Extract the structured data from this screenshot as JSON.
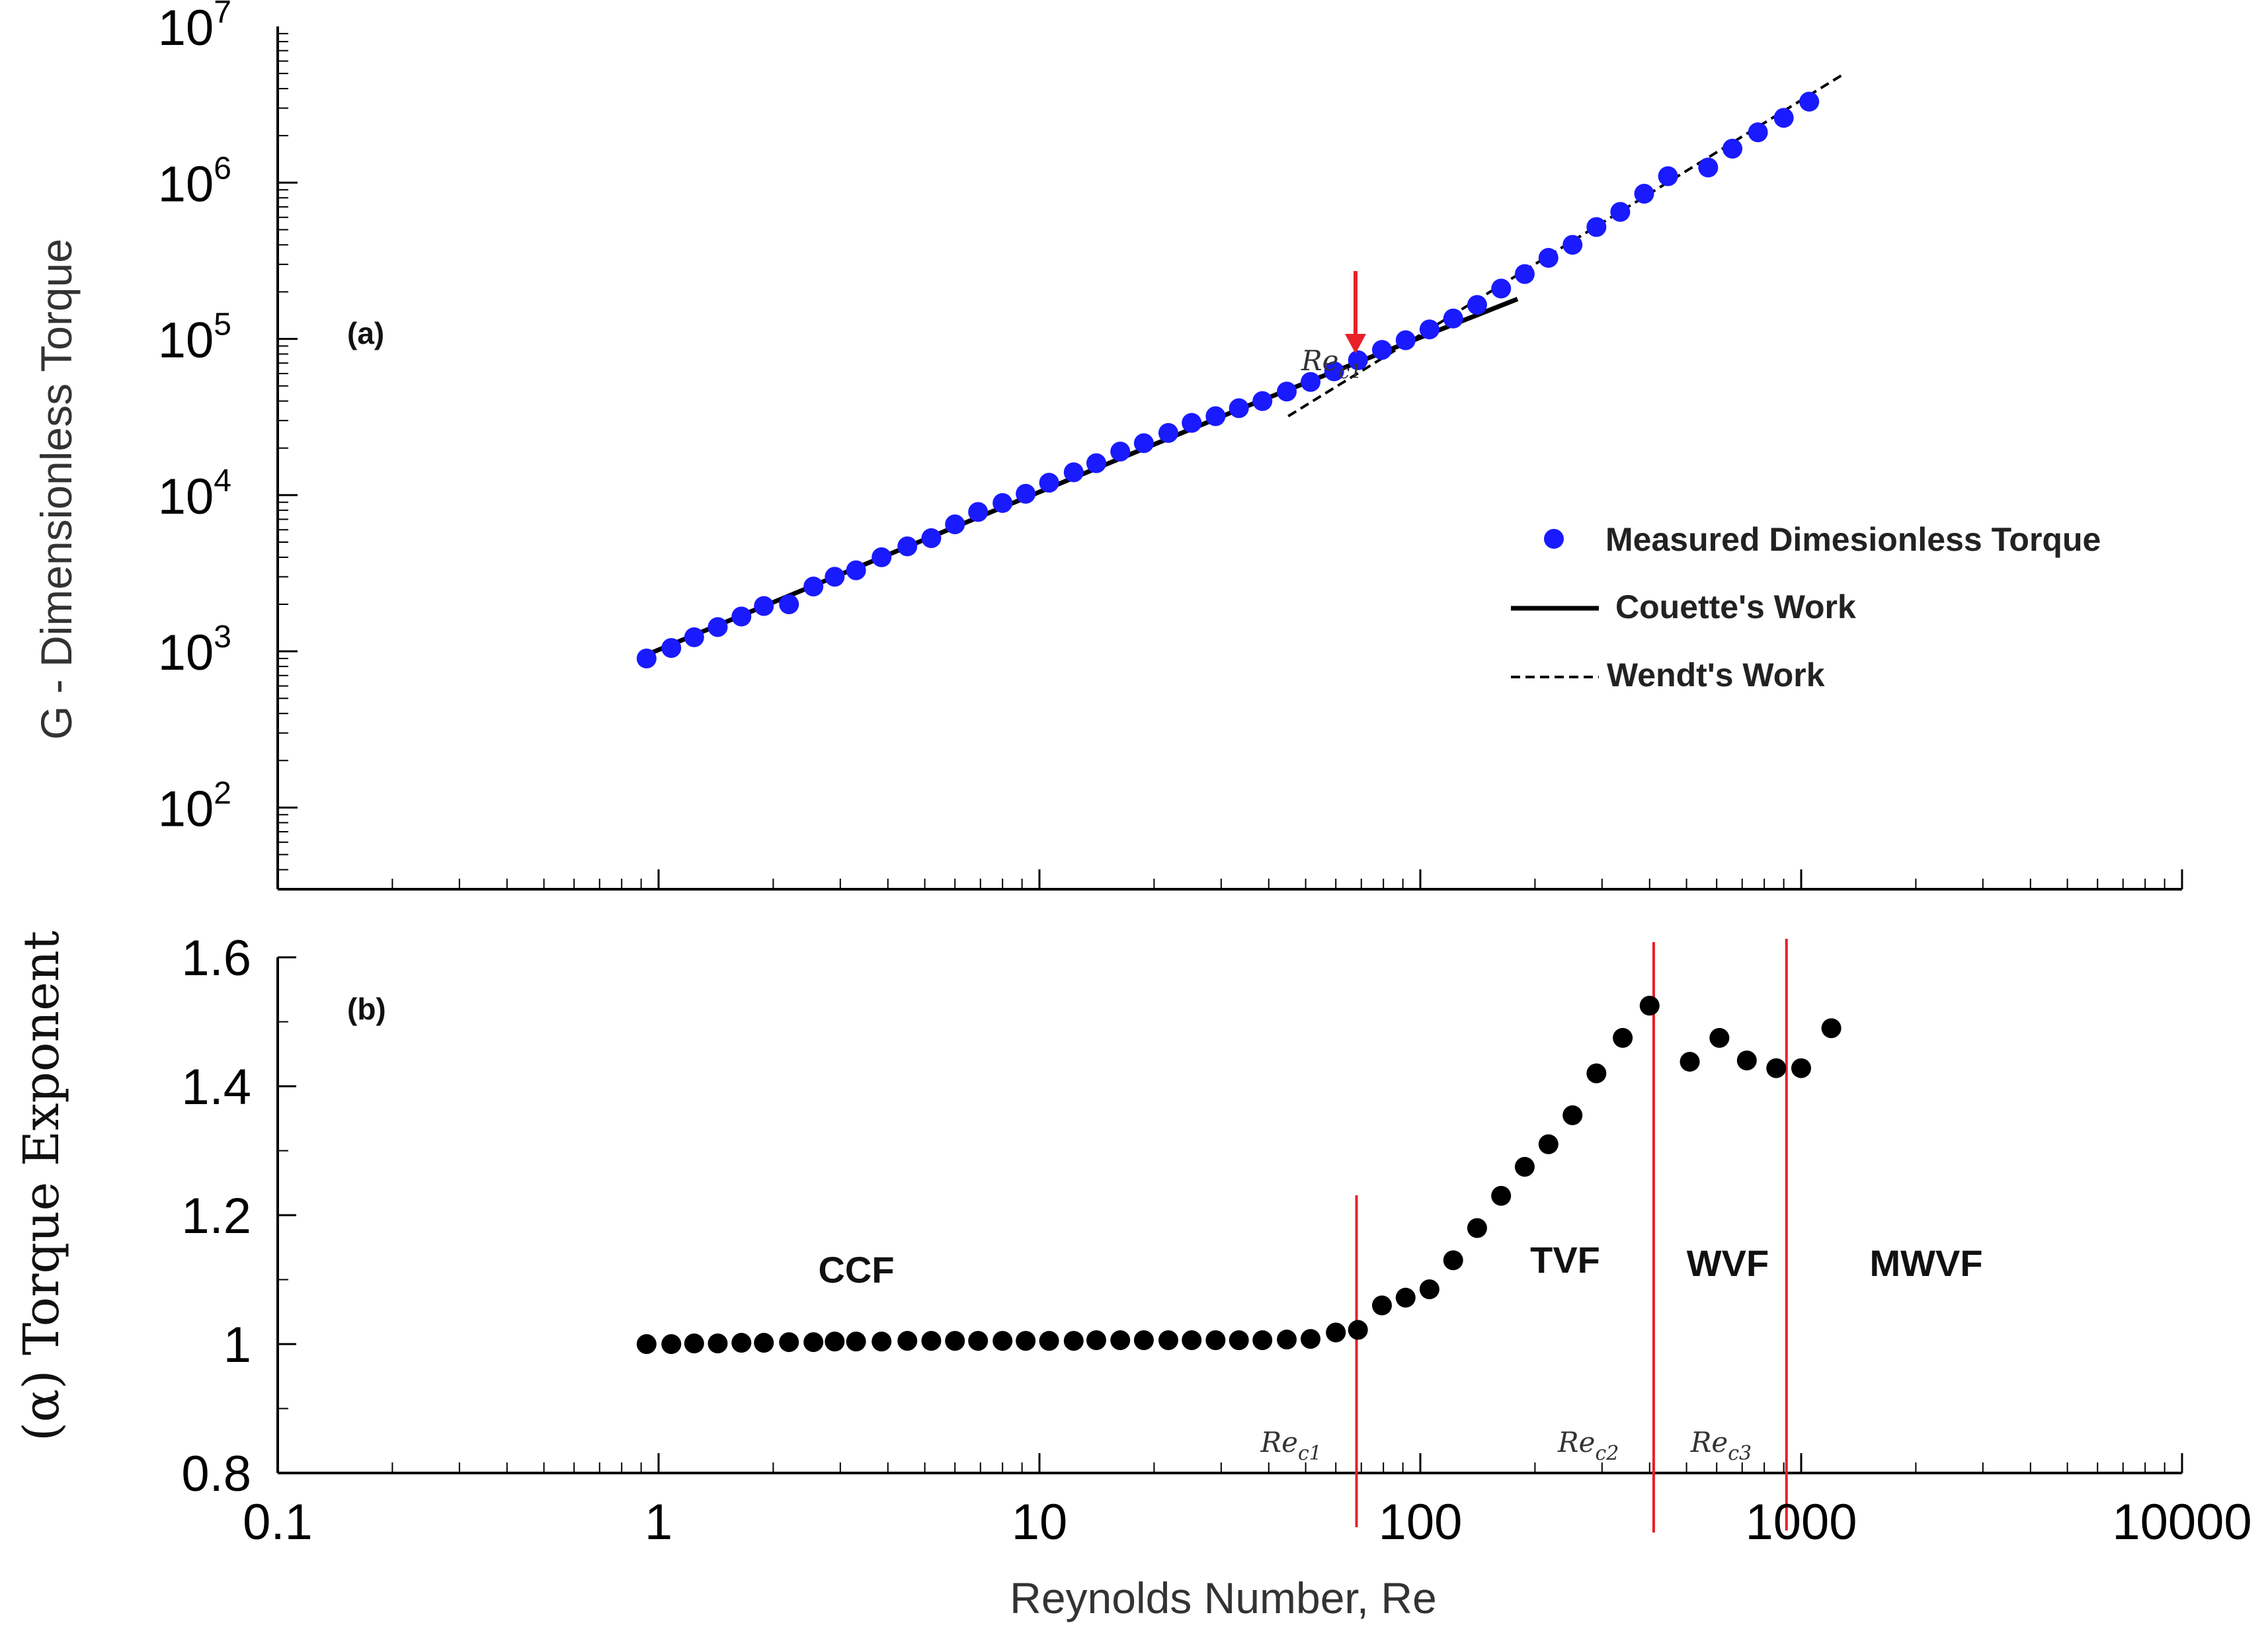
{
  "colors": {
    "measured": "#1a1aff",
    "exponent": "#000000",
    "critical": "#e8202a",
    "line": "#000000"
  },
  "chart_data": [
    {
      "type": "scatter",
      "panel_label": "(a)",
      "ylabel": "G - Dimensionless Torque",
      "xlabel": "Reynolds Number, Re",
      "x_scale": "log",
      "y_scale": "log",
      "xlim": [
        0.1,
        10000
      ],
      "ylim": [
        30,
        10000000
      ],
      "y_ticks": [
        {
          "value": 100,
          "base": "10",
          "exp": "2"
        },
        {
          "value": 1000,
          "base": "10",
          "exp": "3"
        },
        {
          "value": 10000,
          "base": "10",
          "exp": "4"
        },
        {
          "value": 100000,
          "base": "10",
          "exp": "5"
        },
        {
          "value": 1000000,
          "base": "10",
          "exp": "6"
        },
        {
          "value": 10000000,
          "base": "10",
          "exp": "7"
        }
      ],
      "legend": {
        "position": "right",
        "measured_label": "Measured Dimesionless Torque",
        "couette_label": "Couette's Work",
        "wendt_label": "Wendt's Work"
      },
      "annotation": {
        "text_main": "Re",
        "text_sub": "c1",
        "x": 68
      },
      "series": [
        {
          "name": "Measured Dimesionless Torque",
          "points": [
            [
              0.93,
              900
            ],
            [
              1.08,
              1050
            ],
            [
              1.24,
              1230
            ],
            [
              1.43,
              1430
            ],
            [
              1.65,
              1670
            ],
            [
              1.89,
              1950
            ],
            [
              2.2,
              2000
            ],
            [
              2.55,
              2600
            ],
            [
              2.9,
              3000
            ],
            [
              3.3,
              3300
            ],
            [
              3.85,
              4000
            ],
            [
              4.5,
              4700
            ],
            [
              5.2,
              5300
            ],
            [
              6.0,
              6500
            ],
            [
              6.9,
              7800
            ],
            [
              8.0,
              8900
            ],
            [
              9.2,
              10200
            ],
            [
              10.6,
              12000
            ],
            [
              12.3,
              14000
            ],
            [
              14.1,
              16000
            ],
            [
              16.3,
              19000
            ],
            [
              18.8,
              21500
            ],
            [
              21.8,
              25000
            ],
            [
              25.1,
              29000
            ],
            [
              29.0,
              32000
            ],
            [
              33.4,
              36000
            ],
            [
              38.5,
              40000
            ],
            [
              44.6,
              46000
            ],
            [
              51.5,
              53000
            ],
            [
              59.4,
              62000
            ],
            [
              68.6,
              73000
            ],
            [
              79.3,
              85000
            ],
            [
              91.5,
              98000
            ],
            [
              105.7,
              115000
            ],
            [
              122,
              135000
            ],
            [
              141,
              165000
            ],
            [
              163,
              210000
            ],
            [
              188,
              260000
            ],
            [
              217,
              330000
            ],
            [
              251,
              400000
            ],
            [
              290,
              520000
            ],
            [
              335,
              650000
            ],
            [
              387,
              850000
            ],
            [
              447,
              1100000
            ],
            [
              570,
              1250000
            ],
            [
              660,
              1650000
            ],
            [
              770,
              2100000
            ],
            [
              900,
              2600000
            ],
            [
              1050,
              3300000
            ]
          ]
        },
        {
          "name": "Couette's Work",
          "points": [
            [
              0.93,
              950
            ],
            [
              33,
              35000
            ],
            [
              180,
              180000
            ]
          ]
        },
        {
          "name": "Wendt's Work",
          "points": [
            [
              45,
              32000
            ],
            [
              1300,
              5000000
            ]
          ]
        }
      ]
    },
    {
      "type": "scatter",
      "panel_label": "(b)",
      "ylabel_symbol": "(α)",
      "ylabel": "Torque Exponent",
      "xlabel": "Reynolds Number, Re",
      "x_scale": "log",
      "xlim": [
        0.1,
        10000
      ],
      "ylim": [
        0.8,
        1.6
      ],
      "y_ticks": [
        "0.8",
        "1",
        "1.2",
        "1.4",
        "1.6"
      ],
      "x_ticks": [
        "0.1",
        "1",
        "10",
        "100",
        "1000",
        "10000"
      ],
      "regions": [
        "CCF",
        "TVF",
        "WVF",
        "MWVF"
      ],
      "critical_lines": [
        {
          "x": 68,
          "label_main": "Re",
          "label_sub": "c1"
        },
        {
          "x": 410,
          "label_main": "Re",
          "label_sub": "c2"
        },
        {
          "x": 915,
          "label_main": "Re",
          "label_sub": "c3"
        }
      ],
      "series": [
        {
          "name": "Torque Exponent",
          "points": [
            [
              0.93,
              1.0
            ],
            [
              1.08,
              1.0
            ],
            [
              1.24,
              1.001
            ],
            [
              1.43,
              1.001
            ],
            [
              1.65,
              1.002
            ],
            [
              1.89,
              1.002
            ],
            [
              2.2,
              1.003
            ],
            [
              2.55,
              1.003
            ],
            [
              2.9,
              1.004
            ],
            [
              3.3,
              1.004
            ],
            [
              3.85,
              1.004
            ],
            [
              4.5,
              1.005
            ],
            [
              5.2,
              1.005
            ],
            [
              6.0,
              1.005
            ],
            [
              6.9,
              1.005
            ],
            [
              8.0,
              1.005
            ],
            [
              9.2,
              1.005
            ],
            [
              10.6,
              1.005
            ],
            [
              12.3,
              1.005
            ],
            [
              14.1,
              1.006
            ],
            [
              16.3,
              1.006
            ],
            [
              18.8,
              1.006
            ],
            [
              21.8,
              1.006
            ],
            [
              25.1,
              1.006
            ],
            [
              29.0,
              1.006
            ],
            [
              33.4,
              1.006
            ],
            [
              38.5,
              1.006
            ],
            [
              44.6,
              1.007
            ],
            [
              51.5,
              1.008
            ],
            [
              60.0,
              1.018
            ],
            [
              68.6,
              1.022
            ],
            [
              79.3,
              1.06
            ],
            [
              91.5,
              1.072
            ],
            [
              105.7,
              1.085
            ],
            [
              122,
              1.13
            ],
            [
              141,
              1.18
            ],
            [
              163,
              1.23
            ],
            [
              188,
              1.275
            ],
            [
              217,
              1.31
            ],
            [
              251,
              1.355
            ],
            [
              290,
              1.42
            ],
            [
              340,
              1.475
            ],
            [
              400,
              1.525
            ],
            [
              510,
              1.438
            ],
            [
              610,
              1.475
            ],
            [
              720,
              1.44
            ],
            [
              860,
              1.428
            ],
            [
              1000,
              1.428
            ],
            [
              1200,
              1.49
            ]
          ]
        }
      ]
    }
  ]
}
